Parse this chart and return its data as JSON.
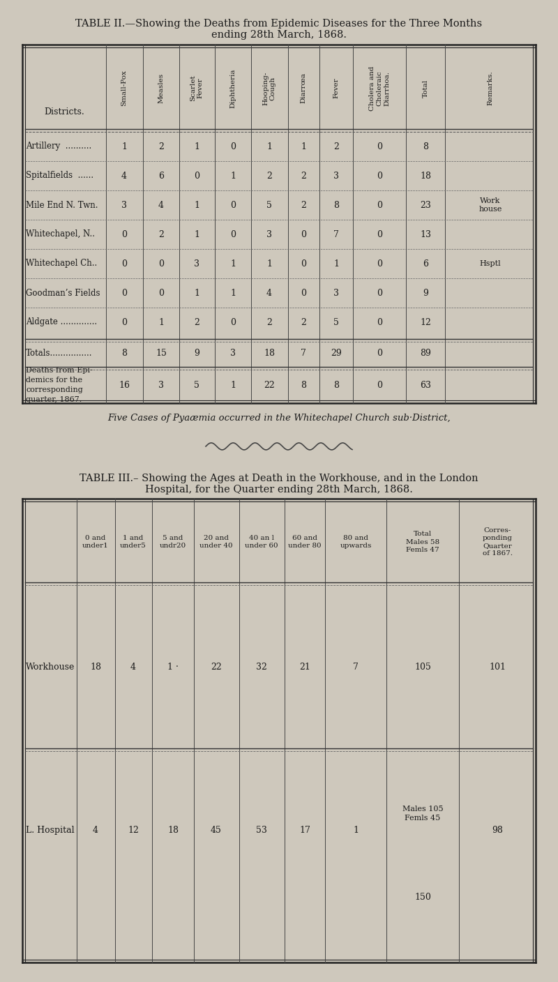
{
  "bg_color": "#cec8bc",
  "table1": {
    "title_line1": "TABLE II.—Showing the Deaths from Epidemic Diseases for the Three Months",
    "title_line2": "ending 28th March, 1868.",
    "col_headers": [
      "Small-Pox",
      "Measles",
      "Scarlet\nFever",
      "Diphtheria",
      "Hooping-\nCough",
      "Diarrœa",
      "Fever",
      "Cholera and\nCholeraic\nDiarrhoa.",
      "Total",
      "Remarks."
    ],
    "row_labels": [
      "Artillery  ..........",
      "Spitalfields  ......",
      "Mile End N. Twn.",
      "Whitechapel, N..",
      "Whitechapel Ch..",
      "Goodman’s Fields",
      "Aldgate .............."
    ],
    "data": [
      [
        1,
        2,
        1,
        0,
        1,
        1,
        2,
        0,
        8,
        ""
      ],
      [
        4,
        6,
        0,
        1,
        2,
        2,
        3,
        0,
        18,
        ""
      ],
      [
        3,
        4,
        1,
        0,
        5,
        2,
        8,
        0,
        23,
        "Work\nhouse"
      ],
      [
        0,
        2,
        1,
        0,
        3,
        0,
        7,
        0,
        13,
        ""
      ],
      [
        0,
        0,
        3,
        1,
        1,
        0,
        1,
        0,
        6,
        "Hsptl"
      ],
      [
        0,
        0,
        1,
        1,
        4,
        0,
        3,
        0,
        9,
        ""
      ],
      [
        0,
        1,
        2,
        0,
        2,
        2,
        5,
        0,
        12,
        ""
      ]
    ],
    "totals_label": "Totals................",
    "totals": [
      8,
      15,
      9,
      3,
      18,
      7,
      29,
      0,
      89,
      ""
    ],
    "prev_label": "Deaths from Epi-\ndemics for the\ncorresponding\nquarter, 1867.",
    "prev_data": [
      16,
      3,
      5,
      1,
      22,
      8,
      8,
      0,
      63,
      ""
    ]
  },
  "footnote": "Five Cases of Pyaæmia occurred in the Whitechapel Church sub·District,",
  "table2": {
    "title_line1": "TABLE III.– Showing the Ages at Death in the Workhouse, and in the London",
    "title_line2": "Hospital, for the Quarter ending 28th March, 1868.",
    "col_headers": [
      "0 and\nunder1",
      "1 and\nunder5",
      "5 and\nundr20",
      "20 and\nunder 40",
      "40 an l\nunder 60",
      "60 and\nunder 80",
      "80 and\nupwards",
      "Total\nMales 58\nFemls 47",
      "Corres-\nponding\nQuarter\nof 1867."
    ],
    "row_labels": [
      "Workhouse",
      "L. Hospital"
    ],
    "workhouse_data": [
      18,
      4,
      "1 ·",
      22,
      32,
      21,
      7,
      "105",
      101
    ],
    "hospital_data": [
      4,
      12,
      18,
      45,
      53,
      17,
      1,
      "Males 105\nFemls 45",
      98
    ],
    "hospital_total_150": "150"
  }
}
